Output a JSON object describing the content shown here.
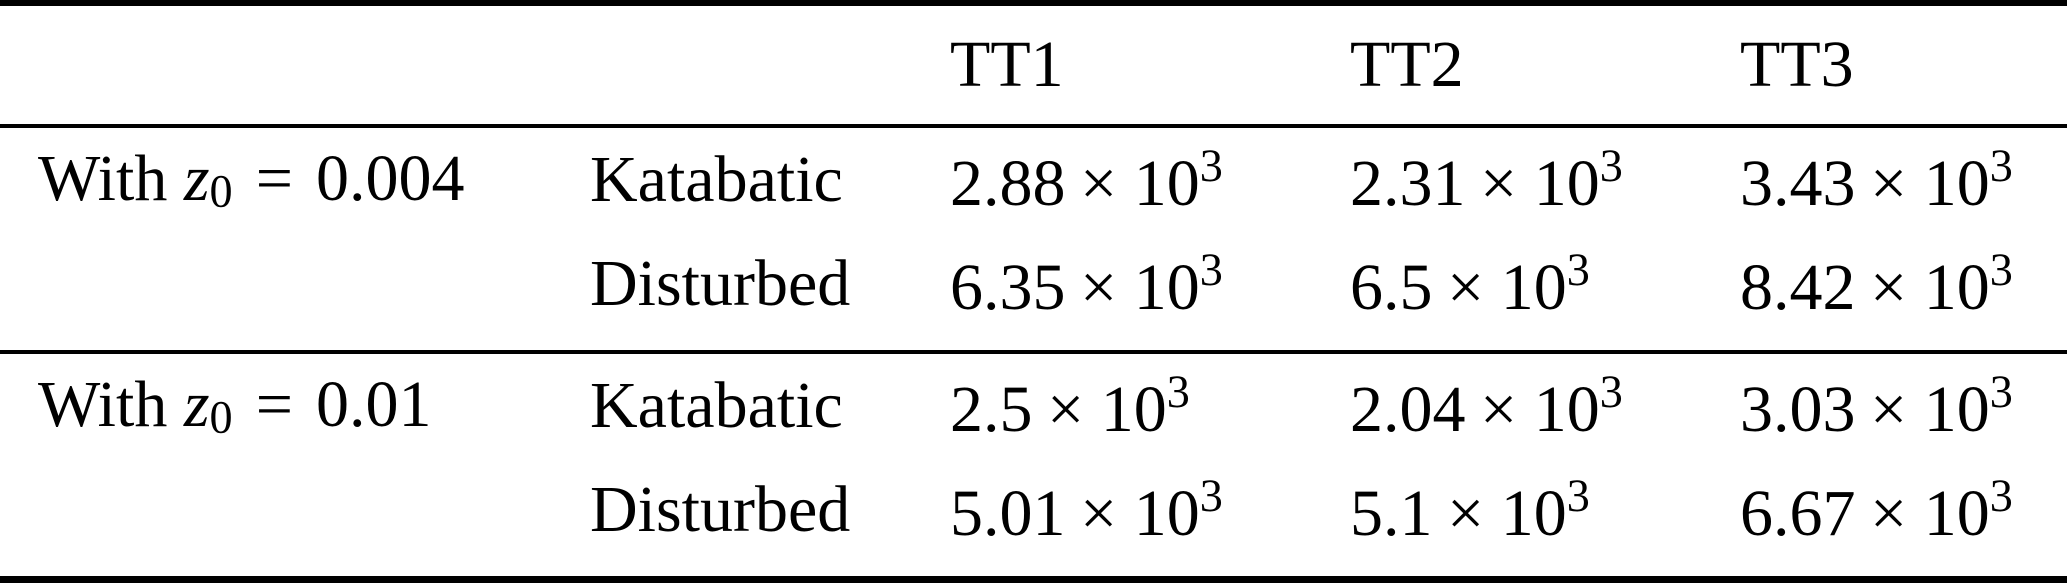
{
  "page": {
    "background_color": "#ffffff",
    "text_color": "#000000"
  },
  "table": {
    "header": {
      "tt1": "TT1",
      "tt2": "TT2",
      "tt3": "TT3"
    },
    "math": {
      "times10": "× 10"
    },
    "groups": [
      {
        "label": {
          "prefix": "With",
          "symbol": "z",
          "subscript": "0",
          "relation": "=",
          "value": "0.004"
        },
        "rows": [
          {
            "condition": "Katabatic",
            "cells": [
              {
                "mantissa": "2.88",
                "exponent": "3"
              },
              {
                "mantissa": "2.31",
                "exponent": "3"
              },
              {
                "mantissa": "3.43",
                "exponent": "3"
              }
            ]
          },
          {
            "condition": "Disturbed",
            "cells": [
              {
                "mantissa": "6.35",
                "exponent": "3"
              },
              {
                "mantissa": "6.5",
                "exponent": "3"
              },
              {
                "mantissa": "8.42",
                "exponent": "3"
              }
            ]
          }
        ]
      },
      {
        "label": {
          "prefix": "With",
          "symbol": "z",
          "subscript": "0",
          "relation": "=",
          "value": "0.01"
        },
        "rows": [
          {
            "condition": "Katabatic",
            "cells": [
              {
                "mantissa": "2.5",
                "exponent": "3"
              },
              {
                "mantissa": "2.04",
                "exponent": "3"
              },
              {
                "mantissa": "3.03",
                "exponent": "3"
              }
            ]
          },
          {
            "condition": "Disturbed",
            "cells": [
              {
                "mantissa": "5.01",
                "exponent": "3"
              },
              {
                "mantissa": "5.1",
                "exponent": "3"
              },
              {
                "mantissa": "6.67",
                "exponent": "3"
              }
            ]
          }
        ]
      }
    ]
  },
  "chart_data": {
    "type": "table",
    "columns": [
      "",
      "",
      "TT1",
      "TT2",
      "TT3"
    ],
    "rows": [
      [
        "With z0 = 0.004",
        "Katabatic",
        "2.88 × 10^3",
        "2.31 × 10^3",
        "3.43 × 10^3"
      ],
      [
        "",
        "Disturbed",
        "6.35 × 10^3",
        "6.5 × 10^3",
        "8.42 × 10^3"
      ],
      [
        "With z0 = 0.01",
        "Katabatic",
        "2.5 × 10^3",
        "2.04 × 10^3",
        "3.03 × 10^3"
      ],
      [
        "",
        "Disturbed",
        "5.01 × 10^3",
        "5.1 × 10^3",
        "6.67 × 10^3"
      ]
    ]
  }
}
